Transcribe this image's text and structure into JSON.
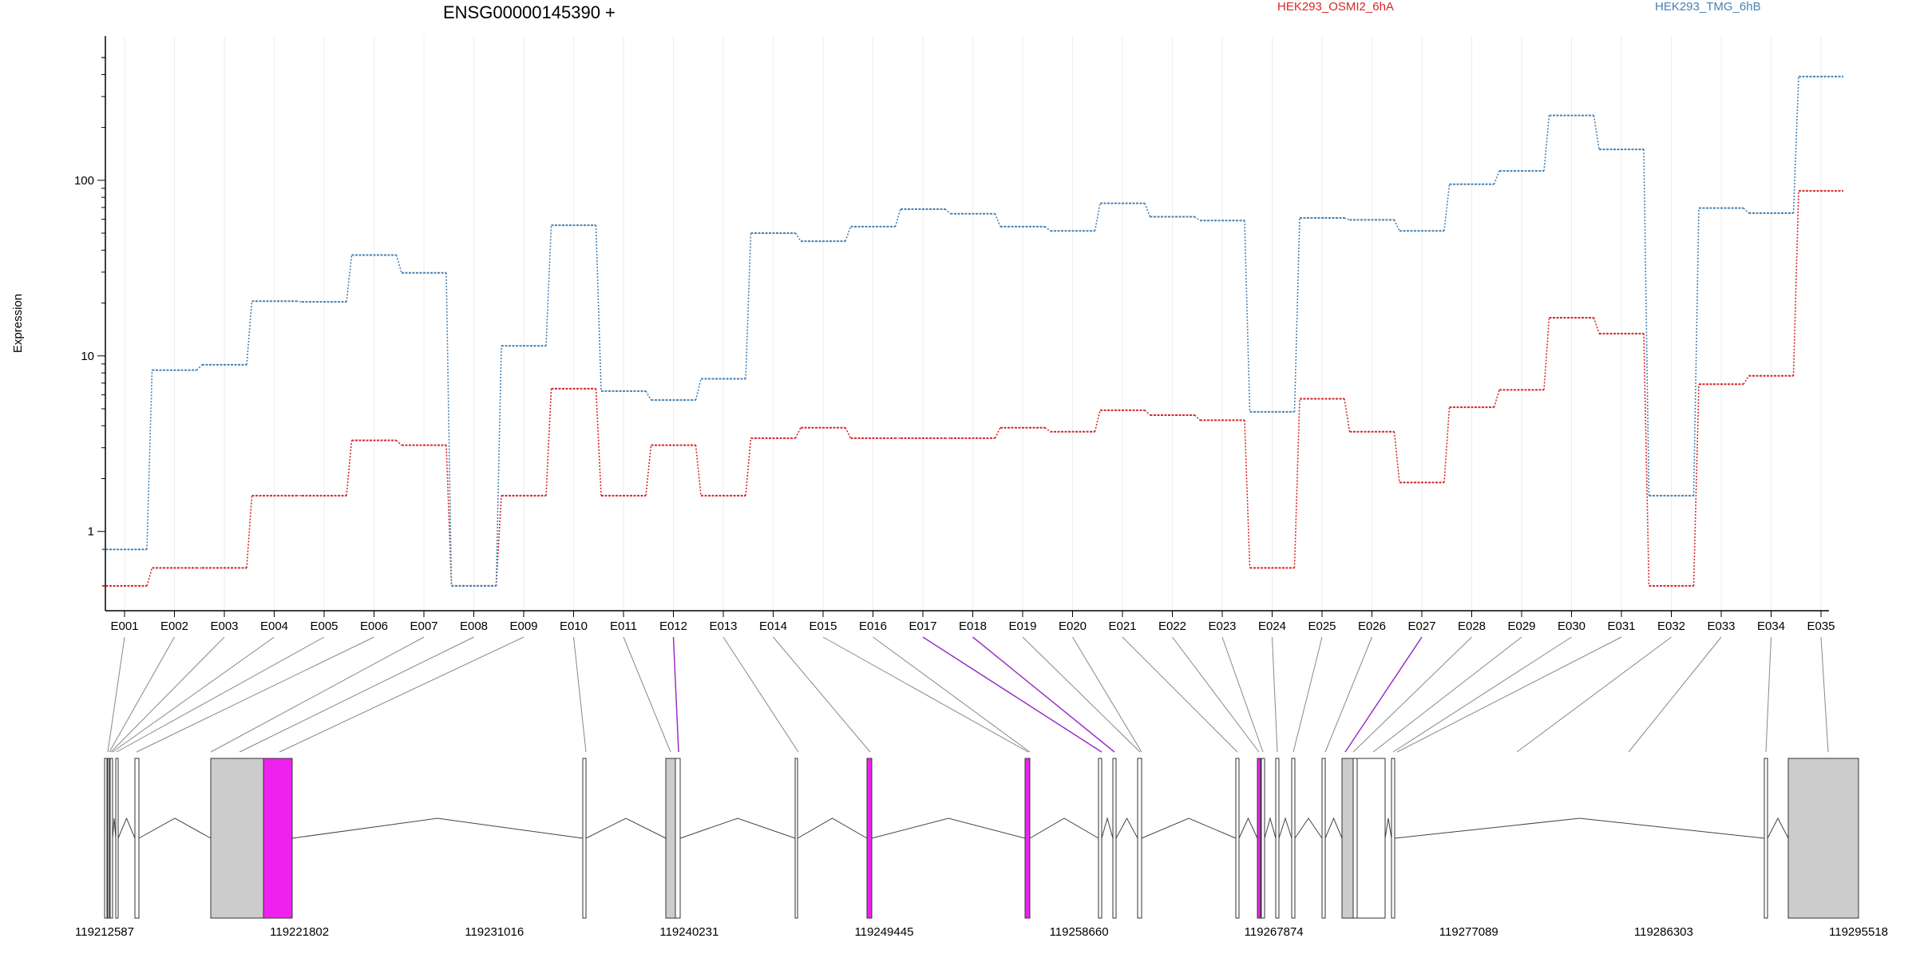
{
  "chart_data": {
    "type": "line",
    "title": "ENSG00000145390 +",
    "ylabel": "Expression",
    "yscale": "log",
    "ylim": [
      0.45,
      550
    ],
    "yticks": [
      {
        "value": 1,
        "label": "1"
      },
      {
        "value": 10,
        "label": "10"
      },
      {
        "value": 100,
        "label": "100"
      }
    ],
    "grid": "vertical",
    "legend_placement": "top",
    "categories": [
      "E001",
      "E002",
      "E003",
      "E004",
      "E005",
      "E006",
      "E007",
      "E008",
      "E009",
      "E010",
      "E011",
      "E012",
      "E013",
      "E014",
      "E015",
      "E016",
      "E017",
      "E018",
      "E019",
      "E020",
      "E021",
      "E022",
      "E023",
      "E024",
      "E025",
      "E026",
      "E027",
      "E028",
      "E029",
      "E030",
      "E031",
      "E032",
      "E033",
      "E034",
      "E035"
    ],
    "series": [
      {
        "name": "HEK293_OSMI2_6hA",
        "color": "#d62728",
        "values": [
          0.49,
          0.62,
          0.62,
          1.6,
          1.6,
          3.3,
          3.1,
          0.49,
          1.6,
          6.5,
          1.6,
          3.1,
          1.6,
          3.4,
          3.9,
          3.4,
          3.4,
          3.4,
          3.9,
          3.7,
          4.9,
          4.6,
          4.3,
          0.62,
          5.7,
          3.7,
          1.9,
          5.1,
          6.4,
          16.5,
          13.4,
          0.49,
          6.9,
          7.7,
          87
        ]
      },
      {
        "name": "HEK293_TMG_6hB",
        "color": "#4682b4",
        "values": [
          0.79,
          8.3,
          8.9,
          20.5,
          20.3,
          37.5,
          29.7,
          0.49,
          11.4,
          55.5,
          6.3,
          5.6,
          7.4,
          50,
          45,
          54.5,
          68.5,
          64.5,
          54.5,
          51.5,
          74,
          62,
          59,
          4.8,
          61,
          59.5,
          51.5,
          95,
          113,
          234,
          150,
          1.6,
          69.5,
          65,
          390
        ]
      }
    ],
    "exon_links_highlighted": [
      "E012",
      "E017",
      "E018",
      "E027"
    ],
    "gene_model": {
      "coordinate_ticks": [
        "119212587",
        "119221802",
        "119231016",
        "119240231",
        "119249445",
        "119258660",
        "119267874",
        "119277089",
        "119286303",
        "119295518"
      ]
    },
    "colors": {
      "highlight": "#ee22ee",
      "exon_fill": "#cccccc",
      "link_normal": "#888888",
      "link_highlight": "#9b30c8"
    }
  }
}
